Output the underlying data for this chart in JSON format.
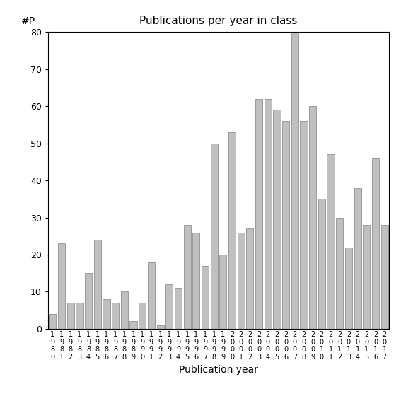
{
  "title": "Publications per year in class",
  "xlabel": "Publication year",
  "ylabel": "#P",
  "years": [
    "1980",
    "1981",
    "1982",
    "1983",
    "1984",
    "1985",
    "1986",
    "1987",
    "1988",
    "1989",
    "1990",
    "1991",
    "1992",
    "1993",
    "1994",
    "1995",
    "1996",
    "1997",
    "1998",
    "1999",
    "2000",
    "2001",
    "2002",
    "2003",
    "2004",
    "2005",
    "2006",
    "2007",
    "2008",
    "2009",
    "2010",
    "2011",
    "2012",
    "2013",
    "2014",
    "2015",
    "2016",
    "2017"
  ],
  "values": [
    4,
    23,
    7,
    7,
    15,
    24,
    8,
    7,
    10,
    2,
    7,
    18,
    1,
    12,
    11,
    28,
    26,
    17,
    50,
    20,
    53,
    26,
    27,
    62,
    62,
    59,
    56,
    80,
    56,
    60,
    35,
    47,
    30,
    22,
    38,
    28,
    46,
    28
  ],
  "bar_color": "#c0c0c0",
  "bar_edgecolor": "#808080",
  "ylim": [
    0,
    80
  ],
  "yticks": [
    0,
    10,
    20,
    30,
    40,
    50,
    60,
    70,
    80
  ],
  "background_color": "#ffffff",
  "figsize": [
    5.67,
    5.67
  ],
  "dpi": 100,
  "title_fontsize": 11,
  "axis_fontsize": 10,
  "tick_fontsize": 9,
  "xtick_fontsize": 7
}
